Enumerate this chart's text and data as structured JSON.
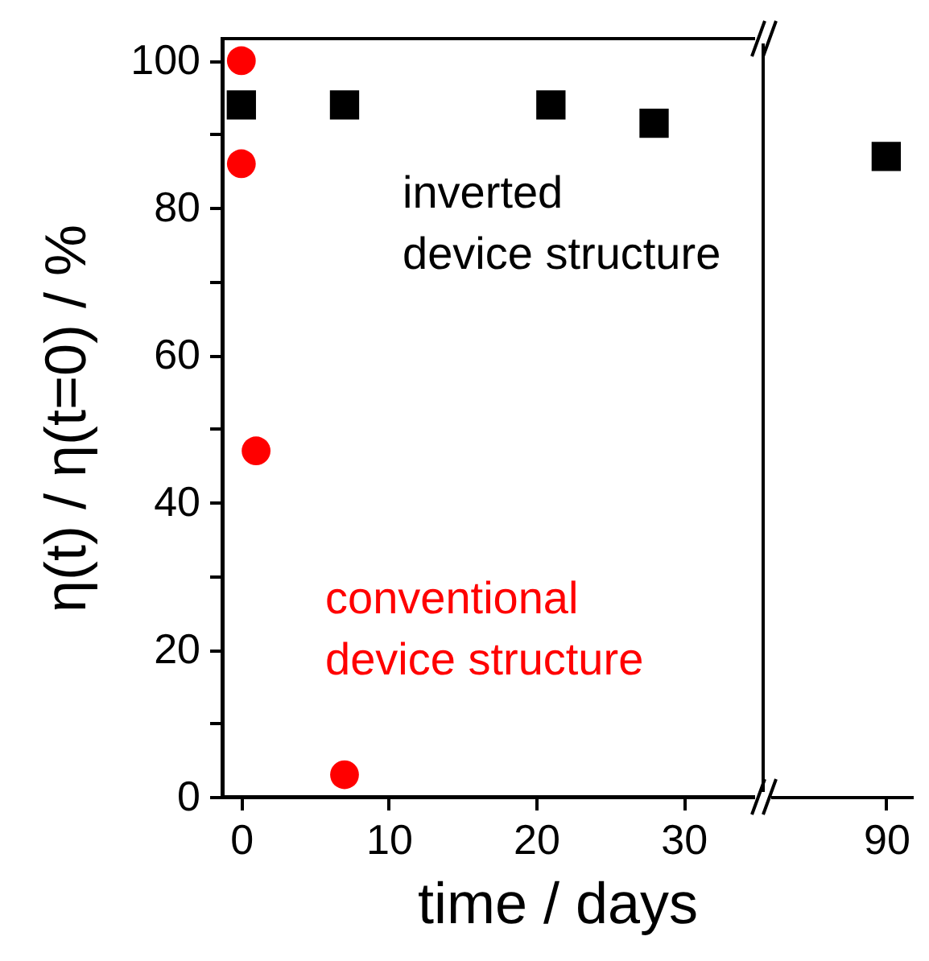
{
  "chart_data": [
    {
      "type": "scatter",
      "xlabel": "time / days",
      "ylabel": "η(t) / η(t=0)     / %",
      "xlim": [
        -1.3,
        35.4
      ],
      "xticks": [
        0,
        10,
        20,
        30
      ],
      "ylim": [
        0,
        103
      ],
      "yticks": [
        0,
        {
          "value": 10,
          "label": null
        },
        20,
        {
          "value": 30,
          "label": null
        },
        40,
        {
          "value": 50,
          "label": null
        },
        60,
        {
          "value": 70,
          "label": null
        },
        80,
        {
          "value": 90,
          "label": null
        },
        100
      ],
      "series": [
        {
          "name": "inverted device structure",
          "color": "#000000",
          "marker": "square",
          "x": [
            0,
            7,
            21,
            28
          ],
          "values": [
            94,
            94,
            94,
            91.5
          ]
        },
        {
          "name": "conventional device structure",
          "color": "#ff0000",
          "marker": "circle",
          "x": [
            0,
            0,
            1,
            7
          ],
          "values": [
            100,
            86,
            47,
            3
          ]
        }
      ]
    },
    {
      "type": "scatter",
      "categories": [
        "90"
      ],
      "ylim": [
        0,
        103
      ],
      "tick_labels": "x",
      "series": [
        {
          "color": "#000000",
          "marker": "square",
          "values": [
            87
          ]
        }
      ]
    }
  ]
}
